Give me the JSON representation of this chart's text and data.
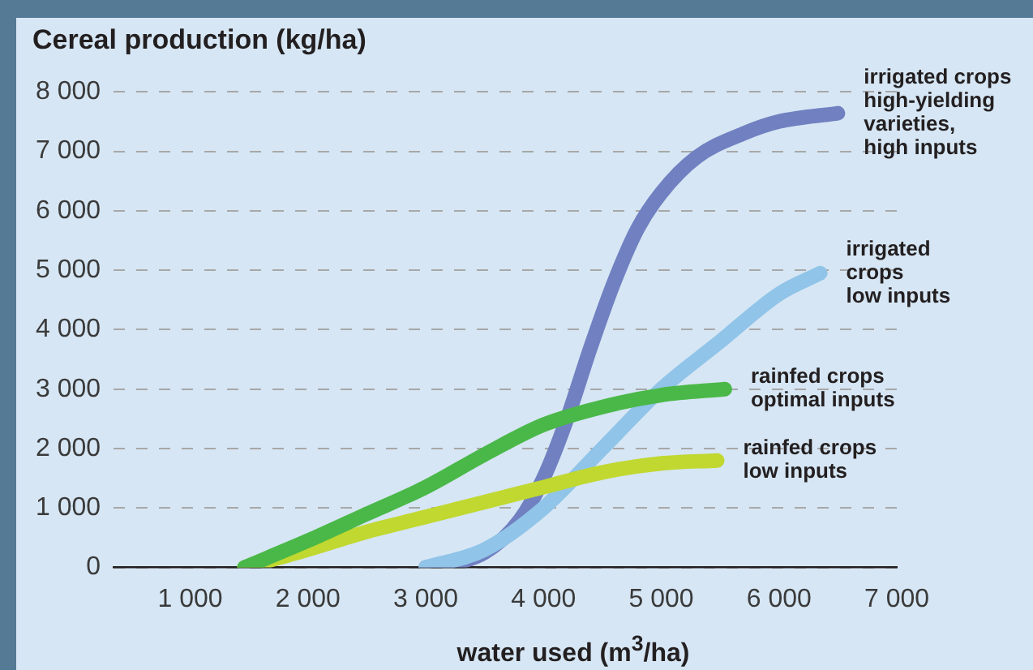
{
  "chart_data": {
    "type": "line",
    "ylabel": "Cereal production (kg/ha)",
    "xlabel": "water used (m$^{3}$/ha)",
    "xlim": [
      350,
      7000
    ],
    "xticks": [
      {
        "value": 1000,
        "label": "1 000"
      },
      {
        "value": 2000,
        "label": "2 000"
      },
      {
        "value": 3000,
        "label": "3 000"
      },
      {
        "value": 4000,
        "label": "4 000"
      },
      {
        "value": 5000,
        "label": "5 000"
      },
      {
        "value": 6000,
        "label": "6 000"
      },
      {
        "value": 7000,
        "label": "7 000"
      }
    ],
    "ylim": [
      0,
      8000
    ],
    "yticks": [
      0,
      {
        "value": 1000,
        "label": "1 000"
      },
      {
        "value": 2000,
        "label": "2 000"
      },
      {
        "value": 3000,
        "label": "3 000"
      },
      {
        "value": 4000,
        "label": "4 000"
      },
      {
        "value": 5000,
        "label": "5 000"
      },
      {
        "value": 6000,
        "label": "6 000"
      },
      {
        "value": 7000,
        "label": "7 000"
      },
      {
        "value": 8000,
        "label": "8 000"
      }
    ],
    "grid": "y",
    "line_style": "solid",
    "marker": "none",
    "legend": false,
    "series": [
      {
        "color": "#4ab848",
        "x": [
          1460,
          2000,
          2500,
          3000,
          3500,
          4000,
          4500,
          5000,
          5540
        ],
        "values": [
          0,
          450,
          900,
          1350,
          1900,
          2400,
          2700,
          2900,
          3000
        ]
      },
      {
        "color": "#c0d830",
        "x": [
          1460,
          2000,
          2500,
          3000,
          3500,
          4000,
          4500,
          5000,
          5475
        ],
        "values": [
          0,
          300,
          600,
          850,
          1100,
          1350,
          1600,
          1750,
          1800
        ]
      },
      {
        "color": "#90c4e8",
        "x": [
          3000,
          3500,
          4000,
          4500,
          5000,
          5500,
          6000,
          6350
        ],
        "values": [
          0,
          300,
          1000,
          2000,
          3000,
          3800,
          4600,
          4950
        ]
      },
      {
        "color": "#7080c0",
        "x": [
          3000,
          3500,
          3800,
          4000,
          4200,
          4400,
          4600,
          4800,
          5000,
          5300,
          5700,
          6000,
          6500
        ],
        "values": [
          0,
          250,
          800,
          1500,
          2500,
          3700,
          4800,
          5700,
          6300,
          6900,
          7300,
          7500,
          7640
        ]
      }
    ],
    "annotations": [
      {
        "text": "irrigated crops\nhigh-yielding\nvarieties,\nhigh inputs",
        "x": 6500,
        "y": 7640
      },
      {
        "text": "irrigated\ncrops\nlow inputs",
        "x": 6350,
        "y": 4950
      },
      {
        "text": "rainfed crops\noptimal inputs",
        "x": 5540,
        "y": 3000
      },
      {
        "text": "rainfed crops\nlow inputs",
        "x": 5475,
        "y": 1800
      }
    ]
  }
}
